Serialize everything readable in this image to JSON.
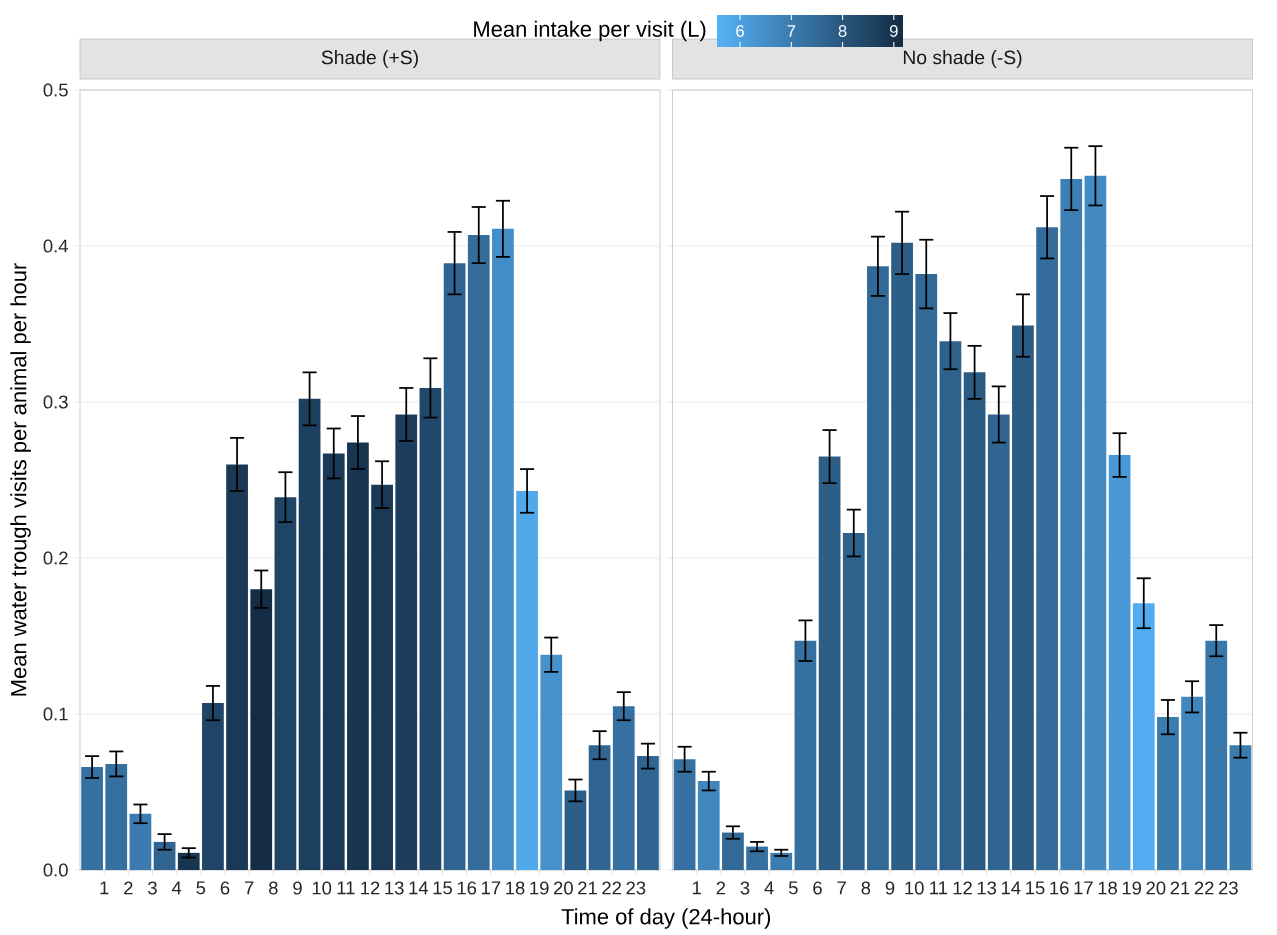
{
  "chart_data": [
    {
      "type": "bar",
      "title": "Shade (+S)",
      "xlabel": "Time of day (24-hour)",
      "ylabel": "Mean water trough visits per animal per hour",
      "clabel": "Mean intake per visit (L)",
      "clim": [
        5.55,
        9.18
      ],
      "cticks": [
        6,
        7,
        8,
        9
      ],
      "grid": "y",
      "x": [
        0.5,
        1.5,
        2.5,
        3.5,
        4.5,
        5.5,
        6.5,
        7.5,
        8.5,
        9.5,
        10.5,
        11.5,
        12.5,
        13.5,
        14.5,
        15.5,
        16.5,
        17.5,
        18.5,
        19.5,
        20.5,
        21.5,
        22.5,
        23.5
      ],
      "values": [
        0.066,
        0.068,
        0.036,
        0.018,
        0.011,
        0.107,
        0.26,
        0.18,
        0.239,
        0.302,
        0.267,
        0.274,
        0.247,
        0.292,
        0.309,
        0.389,
        0.407,
        0.411,
        0.243,
        0.138,
        0.051,
        0.08,
        0.105,
        0.073
      ],
      "errors": [
        0.007,
        0.008,
        0.006,
        0.005,
        0.003,
        0.011,
        0.017,
        0.012,
        0.016,
        0.017,
        0.016,
        0.017,
        0.015,
        0.017,
        0.019,
        0.02,
        0.018,
        0.018,
        0.014,
        0.011,
        0.007,
        0.009,
        0.009,
        0.008
      ],
      "cvalues": [
        7.3,
        7.3,
        7.0,
        7.6,
        8.9,
        8.5,
        8.8,
        9.15,
        8.5,
        8.6,
        8.8,
        8.9,
        8.8,
        8.7,
        8.4,
        7.6,
        7.4,
        6.5,
        5.8,
        6.4,
        7.8,
        7.6,
        7.3,
        7.6
      ],
      "xlim": [
        0,
        24
      ],
      "xticks": [
        1,
        2,
        3,
        4,
        5,
        6,
        7,
        8,
        9,
        10,
        11,
        12,
        13,
        14,
        15,
        16,
        17,
        18,
        19,
        20,
        21,
        22,
        23
      ],
      "ylim": [
        0,
        0.5
      ],
      "yticks": [
        {
          "value": 0,
          "label": "0.0"
        },
        {
          "value": 0.1,
          "label": "0.1"
        },
        {
          "value": 0.2,
          "label": "0.2"
        },
        {
          "value": 0.3,
          "label": "0.3"
        },
        {
          "value": 0.4,
          "label": "0.4"
        },
        {
          "value": 0.5,
          "label": "0.5"
        }
      ]
    },
    {
      "type": "bar",
      "title": "No shade (-S)",
      "grid": "y",
      "tick_labels": "x",
      "x": [
        0.5,
        1.5,
        2.5,
        3.5,
        4.5,
        5.5,
        6.5,
        7.5,
        8.5,
        9.5,
        10.5,
        11.5,
        12.5,
        13.5,
        14.5,
        15.5,
        16.5,
        17.5,
        18.5,
        19.5,
        20.5,
        21.5,
        22.5,
        23.5
      ],
      "values": [
        0.071,
        0.057,
        0.024,
        0.015,
        0.011,
        0.147,
        0.265,
        0.216,
        0.387,
        0.402,
        0.382,
        0.339,
        0.319,
        0.292,
        0.349,
        0.412,
        0.443,
        0.445,
        0.266,
        0.171,
        0.098,
        0.111,
        0.147,
        0.08
      ],
      "errors": [
        0.008,
        0.006,
        0.004,
        0.003,
        0.002,
        0.013,
        0.017,
        0.015,
        0.019,
        0.02,
        0.022,
        0.018,
        0.017,
        0.018,
        0.02,
        0.02,
        0.02,
        0.019,
        0.014,
        0.016,
        0.011,
        0.01,
        0.01,
        0.008
      ],
      "colors": [
        "#3670a0",
        "#4187be",
        "#326996",
        "#3670a0",
        "#3b7caf",
        "#3670a0",
        "#2d5e87",
        "#2e628c",
        "#326996",
        "#2d5e87",
        "#326996",
        "#2e628c",
        "#2b5a83",
        "#306591",
        "#2b5a83",
        "#346d9b",
        "#3d7fb4",
        "#438ac3",
        "#4a99d7",
        "#53abf0",
        "#3b7caf",
        "#4187be",
        "#3978aa",
        "#3b7caf"
      ],
      "xlim": [
        0,
        24
      ],
      "xticks": [
        1,
        2,
        3,
        4,
        5,
        6,
        7,
        8,
        9,
        10,
        11,
        12,
        13,
        14,
        15,
        16,
        17,
        18,
        19,
        20,
        21,
        22,
        23
      ],
      "ylim": [
        0,
        0.5
      ],
      "yticks": [
        {
          "value": 0,
          "label": null
        },
        {
          "value": 0.1,
          "label": null
        },
        {
          "value": 0.2,
          "label": null
        },
        {
          "value": 0.3,
          "label": null
        },
        {
          "value": 0.4,
          "label": null
        },
        {
          "value": 0.5,
          "label": null
        }
      ]
    }
  ]
}
